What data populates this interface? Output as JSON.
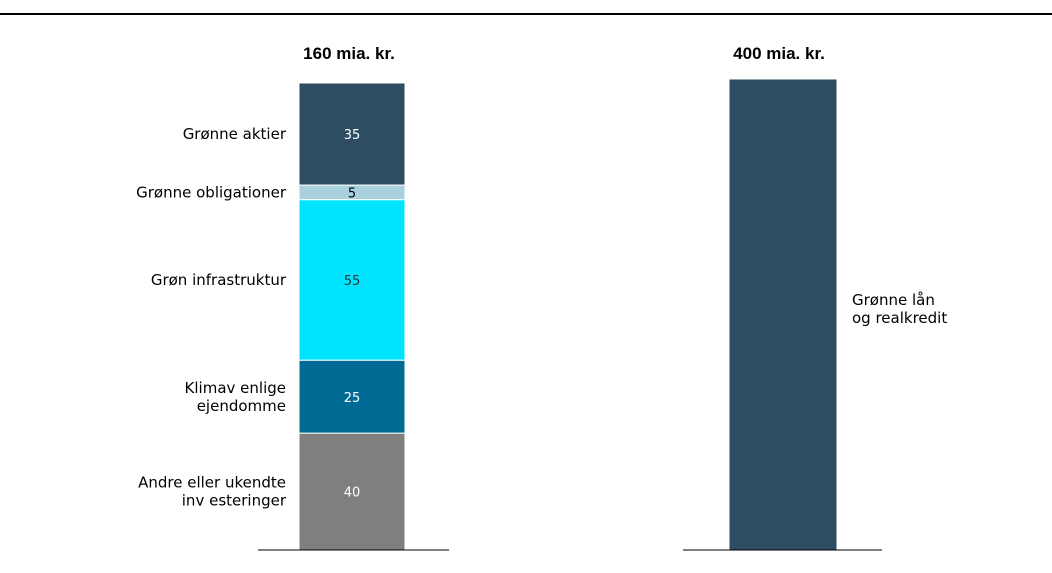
{
  "chart_data": [
    {
      "type": "bar",
      "stacked": true,
      "total_label": "160 mia. kr.",
      "total": 160,
      "title": "",
      "xlabel": "",
      "ylabel": "",
      "segments_top_to_bottom": [
        {
          "label_lines": [
            "Grønne aktier"
          ],
          "value": 35,
          "value_label": "35",
          "color": "#2e4d63",
          "value_color": "#ffffff"
        },
        {
          "label_lines": [
            "Grønne obligationer"
          ],
          "value": 5,
          "value_label": "5",
          "color": "#a8d1dd",
          "value_color": "#000000"
        },
        {
          "label_lines": [
            "Grøn infrastruktur"
          ],
          "value": 55,
          "value_label": "55",
          "color": "#00e5ff",
          "value_color": "#333333"
        },
        {
          "label_lines": [
            "Klimav enlige",
            "ejendomme"
          ],
          "value": 25,
          "value_label": "25",
          "color": "#006b94",
          "value_color": "#ffffff"
        },
        {
          "label_lines": [
            "Andre eller ukendte",
            "inv esteringer"
          ],
          "value": 40,
          "value_label": "40",
          "color": "#7f7f7f",
          "value_color": "#ffffff"
        }
      ]
    },
    {
      "type": "bar",
      "total_label": "400 mia. kr.",
      "total": 400,
      "title": "",
      "xlabel": "",
      "ylabel": "",
      "segments_top_to_bottom": [
        {
          "label_lines": [
            "Grønne lån",
            "og realkredit"
          ],
          "value": 400,
          "value_label": "",
          "color": "#2e4d63",
          "value_color": "#ffffff"
        }
      ]
    }
  ],
  "colors": {
    "rule": "#000000",
    "axis": "#000000",
    "segment_divider": "#ffffff"
  }
}
